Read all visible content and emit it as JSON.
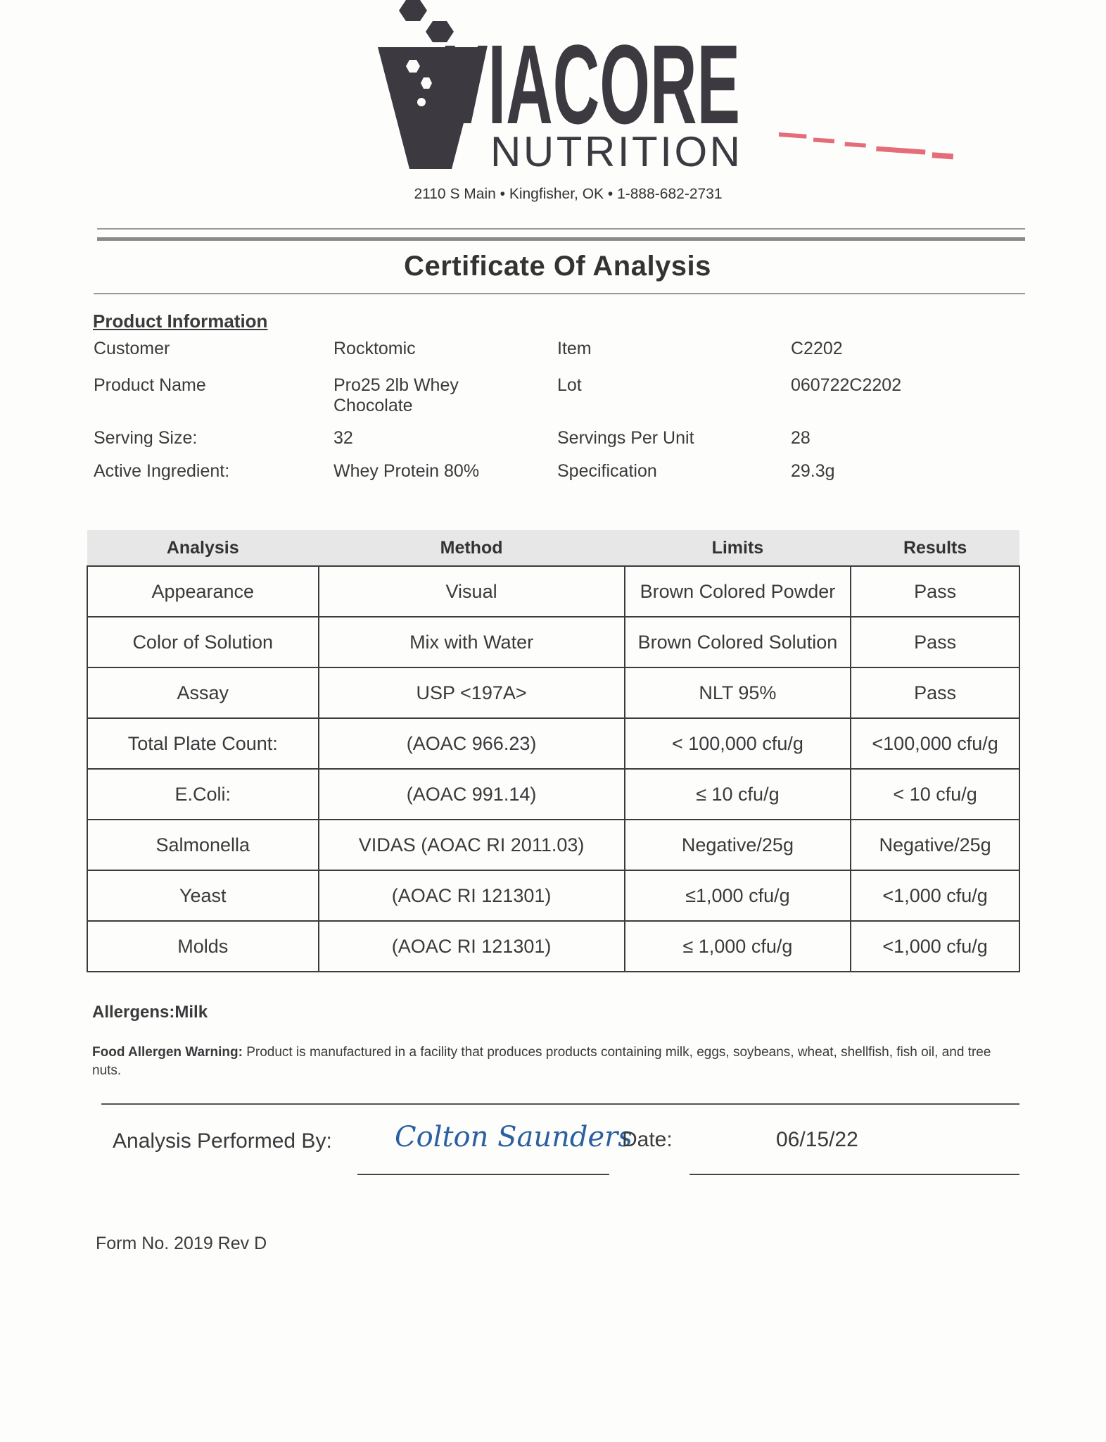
{
  "header": {
    "logo_text": "VIACORE",
    "logo_subtext": "NUTRITION",
    "address": "2110 S Main  •  Kingfisher, OK  •  1-888-682-2731",
    "brand_color": "#3c3a40",
    "stamp_color": "#e04a5a"
  },
  "title": "Certificate Of Analysis",
  "product_info": {
    "heading": "Product Information",
    "rows": [
      {
        "l1": "Customer",
        "v1": "Rocktomic",
        "l2": "Item",
        "v2": "C2202"
      },
      {
        "l1": "Product Name",
        "v1": "Pro25 2lb Whey Chocolate",
        "l2": "Lot",
        "v2": "060722C2202"
      },
      {
        "l1": "Serving Size:",
        "v1": "32",
        "l2": "Servings Per Unit",
        "v2": "28"
      },
      {
        "l1": "Active Ingredient:",
        "v1": "Whey Protein 80%",
        "l2": "Specification",
        "v2": "29.3g"
      }
    ]
  },
  "analysis_table": {
    "headers": [
      "Analysis",
      "Method",
      "Limits",
      "Results"
    ],
    "rows": [
      [
        "Appearance",
        "Visual",
        "Brown Colored Powder",
        "Pass"
      ],
      [
        "Color of Solution",
        "Mix with Water",
        "Brown Colored Solution",
        "Pass"
      ],
      [
        "Assay",
        "USP <197A>",
        "NLT 95%",
        "Pass"
      ],
      [
        "Total Plate Count:",
        "(AOAC 966.23)",
        "< 100,000 cfu/g",
        "<100,000 cfu/g"
      ],
      [
        "E.Coli:",
        "(AOAC 991.14)",
        "≤ 10 cfu/g",
        "< 10 cfu/g"
      ],
      [
        "Salmonella",
        "VIDAS (AOAC RI 2011.03)",
        "Negative/25g",
        "Negative/25g"
      ],
      [
        "Yeast",
        "(AOAC RI 121301)",
        "≤1,000 cfu/g",
        "<1,000 cfu/g"
      ],
      [
        "Molds",
        "(AOAC RI 121301)",
        "≤ 1,000 cfu/g",
        "<1,000  cfu/g"
      ]
    ]
  },
  "allergens": "Allergens:Milk",
  "warning": {
    "label": "Food Allergen Warning:",
    "text": " Product is manufactured in a facility that produces products containing milk, eggs, soybeans, wheat, shellfish, fish oil, and tree nuts."
  },
  "signoff": {
    "performed_label": "Analysis Performed By:",
    "signature": "Colton Saunders",
    "date_label": "Date:",
    "date_value": "06/15/22"
  },
  "form_no": "Form No. 2019 Rev D"
}
